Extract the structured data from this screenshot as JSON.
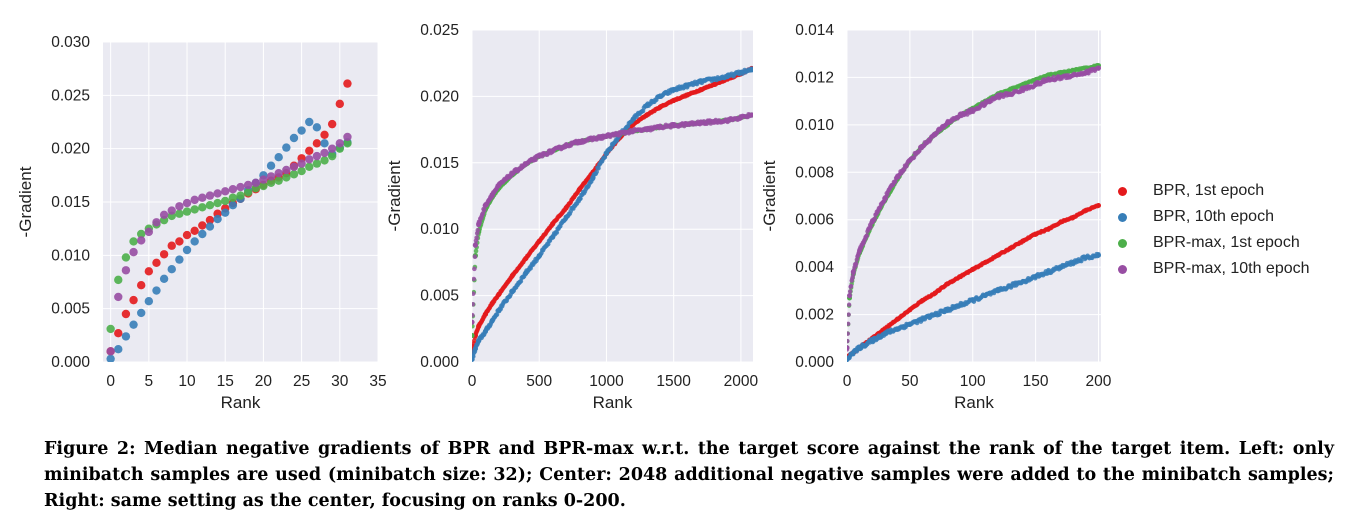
{
  "colors": {
    "bpr_1st": "#e41a1c",
    "bpr_10th": "#377eb8",
    "bprmax_1st": "#4daf4a",
    "bprmax_10th": "#984ea3",
    "panel_bg": "#eaeaf2",
    "grid": "#ffffff"
  },
  "legend": {
    "placement": "right",
    "items": [
      {
        "label": "BPR, 1st epoch",
        "color": "#e41a1c"
      },
      {
        "label": "BPR, 10th epoch",
        "color": "#377eb8"
      },
      {
        "label": "BPR-max, 1st epoch",
        "color": "#4daf4a"
      },
      {
        "label": "BPR-max, 10th epoch",
        "color": "#984ea3"
      }
    ]
  },
  "caption": "Figure 2: Median negative gradients of BPR and BPR-max w.r.t. the target score against the rank of the target item. Left: only minibatch samples are used (minibatch size: 32); Center: 2048 additional negative samples were added to the minibatch samples; Right: same setting as the center, focusing on ranks 0-200.",
  "chart_data": [
    {
      "type": "scatter",
      "xlabel": "Rank",
      "ylabel": "-Gradient",
      "xlim": [
        -1,
        35
      ],
      "ylim": [
        0,
        0.03
      ],
      "xticks": [
        "0",
        "5",
        "10",
        "15",
        "20",
        "25",
        "30",
        "35"
      ],
      "yticks": [
        "0.000",
        "0.005",
        "0.010",
        "0.015",
        "0.020",
        "0.025",
        "0.030"
      ],
      "grid": true,
      "series": [
        {
          "key": "bpr_1st",
          "x": [
            0,
            1,
            2,
            3,
            4,
            5,
            6,
            7,
            8,
            9,
            10,
            11,
            12,
            13,
            14,
            15,
            16,
            17,
            18,
            19,
            20,
            21,
            22,
            23,
            24,
            25,
            26,
            27,
            28,
            29,
            30,
            31
          ],
          "y": [
            0.001,
            0.0027,
            0.0045,
            0.0058,
            0.0072,
            0.0085,
            0.0093,
            0.0101,
            0.0109,
            0.0113,
            0.0119,
            0.0123,
            0.0128,
            0.0133,
            0.0139,
            0.0144,
            0.0149,
            0.0153,
            0.0158,
            0.0162,
            0.0166,
            0.017,
            0.0173,
            0.0177,
            0.0184,
            0.0191,
            0.0198,
            0.0205,
            0.0213,
            0.0223,
            0.0242,
            0.0261
          ]
        },
        {
          "key": "bpr_10th",
          "x": [
            0,
            1,
            2,
            3,
            4,
            5,
            6,
            7,
            8,
            9,
            10,
            11,
            12,
            13,
            14,
            15,
            16,
            17,
            18,
            19,
            20,
            21,
            22,
            23,
            24,
            25,
            26,
            27,
            28,
            29,
            30,
            31
          ],
          "y": [
            0.0003,
            0.0012,
            0.0024,
            0.0035,
            0.0046,
            0.0057,
            0.0067,
            0.0078,
            0.0087,
            0.0096,
            0.0105,
            0.0113,
            0.012,
            0.0127,
            0.0134,
            0.014,
            0.0147,
            0.0153,
            0.0161,
            0.0168,
            0.0175,
            0.0184,
            0.0192,
            0.0201,
            0.021,
            0.0217,
            0.0225,
            0.022,
            0.0205,
            0.0195,
            0.0201,
            0.0206
          ]
        },
        {
          "key": "bprmax_1st",
          "x": [
            0,
            1,
            2,
            3,
            4,
            5,
            6,
            7,
            8,
            9,
            10,
            11,
            12,
            13,
            14,
            15,
            16,
            17,
            18,
            19,
            20,
            21,
            22,
            23,
            24,
            25,
            26,
            27,
            28,
            29,
            30,
            31
          ],
          "y": [
            0.0031,
            0.0077,
            0.0098,
            0.0113,
            0.012,
            0.0125,
            0.0129,
            0.0133,
            0.0137,
            0.0139,
            0.0141,
            0.0143,
            0.0145,
            0.0147,
            0.0149,
            0.0151,
            0.0154,
            0.0156,
            0.0159,
            0.0163,
            0.0165,
            0.0168,
            0.017,
            0.0173,
            0.0176,
            0.0179,
            0.0183,
            0.0186,
            0.0189,
            0.0193,
            0.02,
            0.0205
          ]
        },
        {
          "key": "bprmax_10th",
          "x": [
            0,
            1,
            2,
            3,
            4,
            5,
            6,
            7,
            8,
            9,
            10,
            11,
            12,
            13,
            14,
            15,
            16,
            17,
            18,
            19,
            20,
            21,
            22,
            23,
            24,
            25,
            26,
            27,
            28,
            29,
            30,
            31
          ],
          "y": [
            0.001,
            0.0061,
            0.0086,
            0.0103,
            0.0114,
            0.0122,
            0.0131,
            0.0138,
            0.0142,
            0.0146,
            0.0149,
            0.0152,
            0.0154,
            0.0156,
            0.0158,
            0.016,
            0.0162,
            0.0164,
            0.0166,
            0.0168,
            0.0171,
            0.0174,
            0.0177,
            0.018,
            0.0183,
            0.0186,
            0.019,
            0.0193,
            0.0196,
            0.02,
            0.0205,
            0.0211
          ]
        }
      ]
    },
    {
      "type": "scatter",
      "xlabel": "Rank",
      "ylabel": "-Gradient",
      "xlim": [
        0,
        2090
      ],
      "ylim": [
        0,
        0.025
      ],
      "xticks": [
        "0",
        "500",
        "1000",
        "1500",
        "2000"
      ],
      "yticks": [
        "0.000",
        "0.005",
        "0.010",
        "0.015",
        "0.020",
        "0.025"
      ],
      "grid": true,
      "series": [
        {
          "key": "bpr_1st",
          "x": [
            0,
            25,
            50,
            100,
            150,
            200,
            300,
            400,
            500,
            600,
            700,
            800,
            900,
            1000,
            1100,
            1200,
            1300,
            1400,
            1500,
            1600,
            1700,
            1800,
            1900,
            2000,
            2080
          ],
          "y": [
            0.0008,
            0.002,
            0.0027,
            0.0036,
            0.0044,
            0.0051,
            0.0065,
            0.0078,
            0.0091,
            0.0104,
            0.0116,
            0.013,
            0.0143,
            0.0157,
            0.0169,
            0.0179,
            0.0186,
            0.0192,
            0.0197,
            0.0201,
            0.0205,
            0.0209,
            0.0213,
            0.0217,
            0.0221
          ]
        },
        {
          "key": "bpr_10th",
          "x": [
            0,
            25,
            50,
            100,
            150,
            200,
            300,
            400,
            500,
            600,
            700,
            800,
            900,
            1000,
            1100,
            1200,
            1300,
            1400,
            1500,
            1600,
            1700,
            1800,
            1900,
            2000,
            2080
          ],
          "y": [
            0.0002,
            0.001,
            0.0016,
            0.0023,
            0.0031,
            0.0039,
            0.0053,
            0.0067,
            0.008,
            0.0094,
            0.0109,
            0.0123,
            0.0139,
            0.0157,
            0.0171,
            0.0183,
            0.0193,
            0.02,
            0.0205,
            0.0208,
            0.0211,
            0.0213,
            0.0215,
            0.0218,
            0.022
          ]
        },
        {
          "key": "bprmax_1st",
          "x": [
            0,
            25,
            50,
            100,
            150,
            200,
            300,
            400,
            500,
            600,
            700,
            800,
            900,
            1000,
            1100,
            1200,
            1300,
            1400,
            1500,
            1600,
            1700,
            1800,
            1900,
            2000,
            2080
          ],
          "y": [
            0.002,
            0.008,
            0.0098,
            0.0115,
            0.0124,
            0.0131,
            0.0141,
            0.0149,
            0.0155,
            0.0159,
            0.0163,
            0.0166,
            0.0168,
            0.017,
            0.0172,
            0.0174,
            0.0175,
            0.0177,
            0.0178,
            0.0179,
            0.018,
            0.0181,
            0.0182,
            0.0184,
            0.0186
          ]
        },
        {
          "key": "bprmax_10th",
          "x": [
            0,
            25,
            50,
            100,
            150,
            200,
            300,
            400,
            500,
            600,
            700,
            800,
            900,
            1000,
            1100,
            1200,
            1300,
            1400,
            1500,
            1600,
            1700,
            1800,
            1900,
            2000,
            2080
          ],
          "y": [
            0.003,
            0.0088,
            0.0104,
            0.0118,
            0.0126,
            0.0133,
            0.0142,
            0.0149,
            0.0155,
            0.0159,
            0.0163,
            0.0166,
            0.0168,
            0.017,
            0.0172,
            0.0174,
            0.0175,
            0.0177,
            0.0178,
            0.0179,
            0.018,
            0.0181,
            0.0182,
            0.0184,
            0.0186
          ]
        }
      ]
    },
    {
      "type": "scatter",
      "xlabel": "Rank",
      "ylabel": "-Gradient",
      "xlim": [
        0,
        202
      ],
      "ylim": [
        0,
        0.014
      ],
      "xticks": [
        "0",
        "50",
        "100",
        "150",
        "200"
      ],
      "yticks": [
        "0.000",
        "0.002",
        "0.004",
        "0.006",
        "0.008",
        "0.010",
        "0.012",
        "0.014"
      ],
      "grid": true,
      "series": [
        {
          "key": "bpr_1st",
          "x": [
            0,
            5,
            10,
            20,
            30,
            40,
            50,
            60,
            70,
            80,
            90,
            100,
            110,
            120,
            130,
            140,
            150,
            160,
            170,
            180,
            190,
            200
          ],
          "y": [
            0.0002,
            0.0004,
            0.0006,
            0.001,
            0.0014,
            0.0018,
            0.0022,
            0.0026,
            0.0029,
            0.0033,
            0.0036,
            0.0039,
            0.0042,
            0.0045,
            0.0048,
            0.0051,
            0.0054,
            0.0056,
            0.0059,
            0.0061,
            0.0064,
            0.0066
          ]
        },
        {
          "key": "bpr_10th",
          "x": [
            0,
            5,
            10,
            20,
            30,
            40,
            50,
            60,
            70,
            80,
            90,
            100,
            110,
            120,
            130,
            140,
            150,
            160,
            170,
            180,
            190,
            200
          ],
          "y": [
            0.0001,
            0.0004,
            0.0006,
            0.0009,
            0.0012,
            0.0014,
            0.0016,
            0.0018,
            0.002,
            0.0022,
            0.0024,
            0.0026,
            0.0028,
            0.003,
            0.0032,
            0.0034,
            0.0036,
            0.0038,
            0.004,
            0.0042,
            0.0044,
            0.0045
          ]
        },
        {
          "key": "bprmax_1st",
          "x": [
            0,
            2,
            5,
            10,
            20,
            30,
            40,
            50,
            60,
            70,
            80,
            90,
            100,
            110,
            120,
            130,
            140,
            150,
            160,
            170,
            180,
            190,
            200
          ],
          "y": [
            0.0006,
            0.0027,
            0.0037,
            0.0046,
            0.0058,
            0.0068,
            0.0077,
            0.0085,
            0.0091,
            0.0096,
            0.01,
            0.0104,
            0.0107,
            0.011,
            0.0113,
            0.0115,
            0.0117,
            0.0119,
            0.0121,
            0.0122,
            0.0123,
            0.0124,
            0.0125
          ]
        },
        {
          "key": "bprmax_10th",
          "x": [
            0,
            2,
            5,
            10,
            20,
            30,
            40,
            50,
            60,
            70,
            80,
            90,
            100,
            110,
            120,
            130,
            140,
            150,
            160,
            170,
            180,
            190,
            200
          ],
          "y": [
            0.0006,
            0.0028,
            0.0038,
            0.0047,
            0.0059,
            0.0069,
            0.0078,
            0.0085,
            0.0091,
            0.0096,
            0.0101,
            0.0104,
            0.0106,
            0.0109,
            0.0112,
            0.0113,
            0.0115,
            0.0117,
            0.0119,
            0.012,
            0.0121,
            0.0122,
            0.0124
          ]
        }
      ]
    }
  ]
}
